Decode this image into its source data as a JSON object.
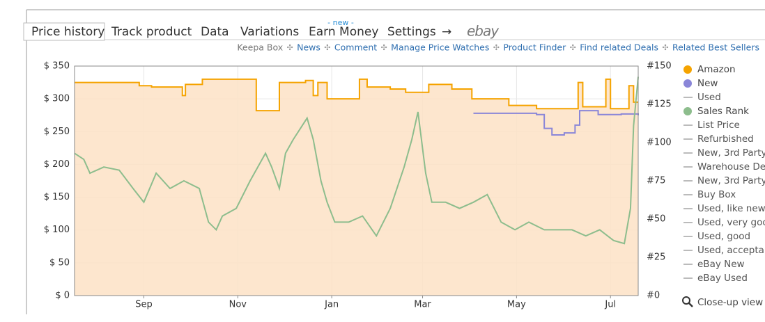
{
  "tabs": {
    "items": [
      "Price history",
      "Track product",
      "Data",
      "Variations",
      "Earn Money",
      "Settings",
      "→",
      "ebay"
    ],
    "badge": "- new -"
  },
  "links": [
    "Keepa Box",
    "News",
    "Comment",
    "Manage Price Watches",
    "Product Finder",
    "Find related Deals",
    "Related Best Sellers"
  ],
  "legend_extra": [
    "Used",
    "List Price",
    "Refurbished",
    "New, 3rd Party",
    "Warehouse Dea",
    "New, 3rd Party",
    "Buy Box",
    "Used, like new",
    "Used, very goo",
    "Used, good",
    "Used, acceptab",
    "eBay New",
    "eBay Used"
  ],
  "closeup": "Close-up view",
  "chart_data": {
    "type": "line",
    "xlim": [
      0,
      366
    ],
    "xticks": [
      {
        "value": 45,
        "label": "Sep"
      },
      {
        "value": 106,
        "label": "Nov"
      },
      {
        "value": 167,
        "label": "Jan"
      },
      {
        "value": 226,
        "label": "Mar"
      },
      {
        "value": 287,
        "label": "May"
      },
      {
        "value": 348,
        "label": "Jul"
      }
    ],
    "ylim": [
      0,
      350
    ],
    "yticks": [
      {
        "value": 0,
        "label": "$ 0"
      },
      {
        "value": 50,
        "label": "$ 50"
      },
      {
        "value": 100,
        "label": "$ 100"
      },
      {
        "value": 150,
        "label": "$ 150"
      },
      {
        "value": 200,
        "label": "$ 200"
      },
      {
        "value": 250,
        "label": "$ 250"
      },
      {
        "value": 300,
        "label": "$ 300"
      },
      {
        "value": 350,
        "label": "$ 350"
      }
    ],
    "y2lim": [
      0,
      150
    ],
    "y2ticks": [
      {
        "value": 0,
        "label": "#0"
      },
      {
        "value": 25,
        "label": "#25"
      },
      {
        "value": 50,
        "label": "#50"
      },
      {
        "value": 75,
        "label": "#75"
      },
      {
        "value": 100,
        "label": "#100"
      },
      {
        "value": 125,
        "label": "#125"
      },
      {
        "value": 150,
        "label": "#150"
      }
    ],
    "grid": true,
    "series": [
      {
        "name": "Amazon",
        "color": "#f5a300",
        "fill": "#fde2c6",
        "step": true,
        "x": [
          0,
          42,
          50,
          70,
          72,
          83,
          118,
          133,
          150,
          155,
          158,
          164,
          185,
          190,
          205,
          215,
          230,
          245,
          258,
          282,
          300,
          327,
          330,
          345,
          348,
          360,
          363,
          366
        ],
        "values": [
          325,
          320,
          318,
          305,
          322,
          330,
          282,
          325,
          328,
          305,
          325,
          300,
          330,
          318,
          315,
          310,
          322,
          315,
          300,
          290,
          285,
          325,
          288,
          330,
          285,
          320,
          295,
          295
        ]
      },
      {
        "name": "New",
        "color": "#8a86d8",
        "step": true,
        "x": [
          237,
          239,
          255,
          257,
          259,
          300,
          305,
          310,
          318,
          325,
          328,
          340,
          355,
          366
        ],
        "values": [
          292,
          null,
          290,
          null,
          278,
          276,
          255,
          245,
          248,
          260,
          282,
          276,
          277,
          275
        ]
      },
      {
        "name": "Sales Rank",
        "color": "#8dbd8d",
        "axis": "y2",
        "x": [
          0,
          6,
          10,
          19,
          29,
          38,
          45,
          53,
          62,
          71,
          81,
          87,
          92,
          96,
          105,
          114,
          124,
          128,
          133,
          137,
          142,
          151,
          155,
          160,
          164,
          169,
          178,
          187,
          196,
          205,
          214,
          219,
          223,
          228,
          232,
          241,
          250,
          259,
          268,
          277,
          286,
          295,
          305,
          314,
          323,
          332,
          341,
          350,
          357,
          361,
          363,
          366
        ],
        "values": [
          93,
          89,
          80,
          84,
          82,
          70,
          61,
          80,
          70,
          75,
          70,
          48,
          43,
          52,
          57,
          75,
          93,
          84,
          70,
          93,
          102,
          116,
          102,
          75,
          61,
          48,
          48,
          52,
          39,
          57,
          84,
          102,
          120,
          80,
          61,
          61,
          57,
          61,
          66,
          48,
          43,
          48,
          43,
          43,
          43,
          39,
          43,
          36,
          34,
          57,
          111,
          143
        ]
      }
    ]
  }
}
